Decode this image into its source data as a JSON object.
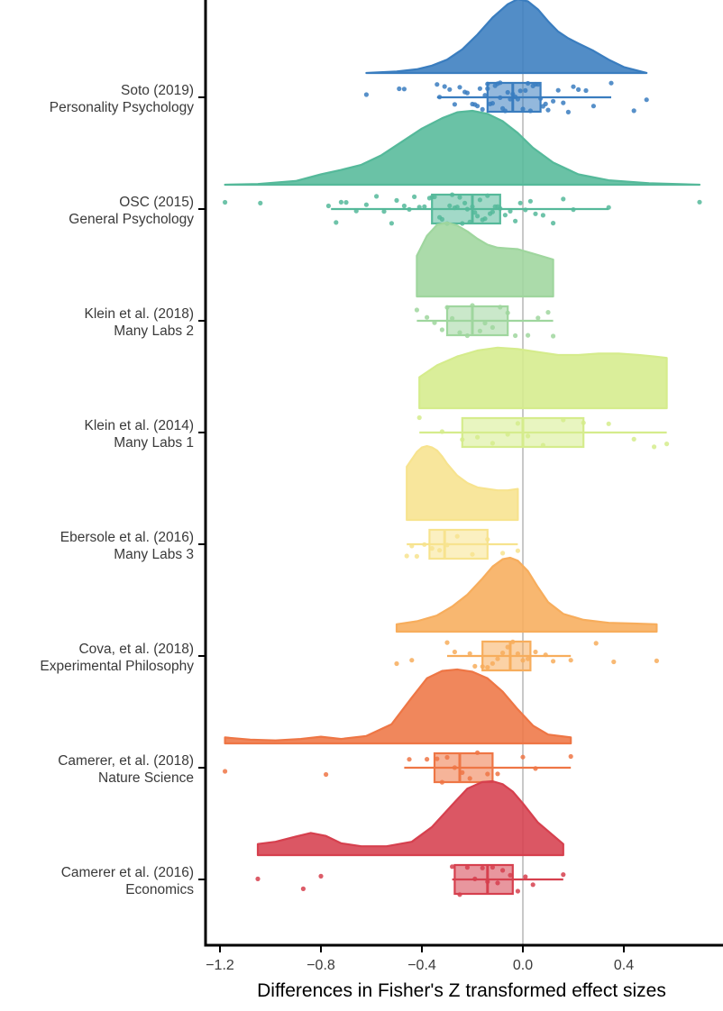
{
  "chart_data": {
    "type": "raincloud",
    "title": "",
    "xlabel": "Differences in Fisher's Z transformed effect sizes",
    "ylabel": "",
    "xlim": [
      -1.24,
      0.76
    ],
    "xticks": [
      -1.2,
      -0.8,
      -0.4,
      0.0,
      0.4
    ],
    "xtick_labels": [
      "−1.2",
      "−0.8",
      "−0.4",
      "0.0",
      "0.4"
    ],
    "reference_line": 0,
    "reference_line_color": "#c8c8c8",
    "grid": false,
    "legend": "none",
    "series": [
      {
        "label_line1": "Soto (2019)",
        "label_line2": "Personality Psychology",
        "color": "#3a7dbf",
        "density": {
          "x": [
            -0.62,
            -0.5,
            -0.42,
            -0.36,
            -0.3,
            -0.24,
            -0.18,
            -0.12,
            -0.06,
            -0.02,
            0.02,
            0.06,
            0.1,
            0.14,
            0.18,
            0.22,
            0.28,
            0.34,
            0.4,
            0.49
          ],
          "y": [
            0.0,
            0.02,
            0.05,
            0.1,
            0.18,
            0.32,
            0.52,
            0.75,
            0.93,
            1.0,
            0.97,
            0.86,
            0.7,
            0.56,
            0.47,
            0.4,
            0.3,
            0.18,
            0.08,
            0.0
          ]
        },
        "box": {
          "q1": -0.14,
          "median": -0.04,
          "q3": 0.07,
          "whisker_low": -0.34,
          "whisker_high": 0.35
        },
        "points": [
          -0.62,
          -0.49,
          -0.47,
          -0.34,
          -0.33,
          -0.31,
          -0.29,
          -0.27,
          -0.25,
          -0.23,
          -0.22,
          -0.2,
          -0.19,
          -0.18,
          -0.17,
          -0.16,
          -0.15,
          -0.14,
          -0.14,
          -0.13,
          -0.12,
          -0.11,
          -0.1,
          -0.09,
          -0.09,
          -0.08,
          -0.07,
          -0.06,
          -0.05,
          -0.04,
          -0.03,
          -0.02,
          -0.01,
          0.0,
          0.01,
          0.02,
          0.03,
          0.04,
          0.05,
          0.06,
          0.07,
          0.08,
          0.09,
          0.1,
          0.12,
          0.14,
          0.16,
          0.18,
          0.2,
          0.22,
          0.25,
          0.28,
          0.35,
          0.44,
          0.49
        ]
      },
      {
        "label_line1": "OSC (2015)",
        "label_line2": "General Psychology",
        "color": "#55b99a",
        "density": {
          "x": [
            -1.18,
            -1.05,
            -0.9,
            -0.8,
            -0.72,
            -0.64,
            -0.56,
            -0.48,
            -0.4,
            -0.32,
            -0.26,
            -0.2,
            -0.14,
            -0.08,
            -0.02,
            0.04,
            0.12,
            0.22,
            0.34,
            0.5,
            0.7
          ],
          "y": [
            0.0,
            0.01,
            0.05,
            0.14,
            0.2,
            0.27,
            0.4,
            0.58,
            0.76,
            0.9,
            0.98,
            1.0,
            0.96,
            0.86,
            0.7,
            0.5,
            0.3,
            0.14,
            0.06,
            0.02,
            0.0
          ]
        },
        "box": {
          "q1": -0.36,
          "median": -0.2,
          "q3": -0.09,
          "whisker_low": -0.76,
          "whisker_high": 0.34
        },
        "points": [
          -1.18,
          -1.04,
          -0.77,
          -0.74,
          -0.72,
          -0.7,
          -0.66,
          -0.62,
          -0.58,
          -0.55,
          -0.52,
          -0.5,
          -0.47,
          -0.45,
          -0.43,
          -0.41,
          -0.39,
          -0.37,
          -0.36,
          -0.35,
          -0.33,
          -0.32,
          -0.3,
          -0.29,
          -0.28,
          -0.27,
          -0.26,
          -0.25,
          -0.24,
          -0.23,
          -0.22,
          -0.21,
          -0.2,
          -0.19,
          -0.18,
          -0.17,
          -0.16,
          -0.15,
          -0.14,
          -0.13,
          -0.12,
          -0.11,
          -0.1,
          -0.09,
          -0.07,
          -0.05,
          -0.03,
          -0.01,
          0.01,
          0.03,
          0.05,
          0.08,
          0.12,
          0.16,
          0.2,
          0.34,
          0.7
        ]
      },
      {
        "label_line1": "Klein et al. (2018)",
        "label_line2": "Many Labs 2",
        "color": "#9fd69e",
        "density": {
          "x": [
            -0.42,
            -0.38,
            -0.34,
            -0.3,
            -0.26,
            -0.22,
            -0.18,
            -0.14,
            -0.1,
            -0.06,
            -0.02,
            0.02,
            0.06,
            0.12
          ],
          "y": [
            0.55,
            0.82,
            0.97,
            1.0,
            0.96,
            0.88,
            0.78,
            0.7,
            0.66,
            0.65,
            0.64,
            0.6,
            0.56,
            0.5
          ]
        },
        "box": {
          "q1": -0.3,
          "median": -0.2,
          "q3": -0.06,
          "whisker_low": -0.42,
          "whisker_high": 0.12
        },
        "points": [
          -0.42,
          -0.38,
          -0.35,
          -0.32,
          -0.3,
          -0.28,
          -0.25,
          -0.22,
          -0.2,
          -0.17,
          -0.15,
          -0.12,
          -0.09,
          -0.06,
          -0.03,
          0.02,
          0.06,
          0.1,
          0.12
        ]
      },
      {
        "label_line1": "Klein et al. (2014)",
        "label_line2": "Many Labs 1",
        "color": "#d5ec8c",
        "density": {
          "x": [
            -0.41,
            -0.34,
            -0.26,
            -0.18,
            -0.1,
            -0.02,
            0.06,
            0.14,
            0.22,
            0.3,
            0.38,
            0.46,
            0.52,
            0.57
          ],
          "y": [
            0.42,
            0.58,
            0.7,
            0.78,
            0.82,
            0.8,
            0.76,
            0.72,
            0.72,
            0.74,
            0.74,
            0.72,
            0.7,
            0.68
          ]
        },
        "box": {
          "q1": -0.24,
          "median": 0.0,
          "q3": 0.24,
          "whisker_low": -0.41,
          "whisker_high": 0.57
        },
        "points": [
          -0.41,
          -0.32,
          -0.24,
          -0.18,
          -0.12,
          -0.06,
          -0.02,
          0.02,
          0.08,
          0.16,
          0.24,
          0.34,
          0.44,
          0.52,
          0.57
        ]
      },
      {
        "label_line1": "Ebersole et al. (2016)",
        "label_line2": "Many Labs 3",
        "color": "#f7e38e",
        "density": {
          "x": [
            -0.46,
            -0.44,
            -0.42,
            -0.4,
            -0.38,
            -0.36,
            -0.34,
            -0.32,
            -0.3,
            -0.26,
            -0.22,
            -0.18,
            -0.14,
            -0.1,
            -0.06,
            -0.02
          ],
          "y": [
            0.72,
            0.82,
            0.92,
            0.98,
            1.0,
            0.98,
            0.94,
            0.86,
            0.76,
            0.6,
            0.5,
            0.44,
            0.42,
            0.4,
            0.4,
            0.42
          ]
        },
        "box": {
          "q1": -0.37,
          "median": -0.31,
          "q3": -0.14,
          "whisker_low": -0.46,
          "whisker_high": -0.02
        },
        "points": [
          -0.46,
          -0.44,
          -0.42,
          -0.39,
          -0.36,
          -0.33,
          -0.3,
          -0.26,
          -0.2,
          -0.14,
          -0.08,
          -0.02
        ]
      },
      {
        "label_line1": "Cova, et al. (2018)",
        "label_line2": "Experimental Philosophy",
        "color": "#f7ad5c",
        "density": {
          "x": [
            -0.5,
            -0.42,
            -0.34,
            -0.28,
            -0.22,
            -0.16,
            -0.12,
            -0.08,
            -0.05,
            -0.02,
            0.02,
            0.06,
            0.1,
            0.16,
            0.24,
            0.34,
            0.44,
            0.53
          ],
          "y": [
            0.1,
            0.14,
            0.22,
            0.34,
            0.5,
            0.72,
            0.88,
            0.98,
            1.0,
            0.96,
            0.82,
            0.6,
            0.4,
            0.24,
            0.16,
            0.12,
            0.11,
            0.1
          ]
        },
        "box": {
          "q1": -0.16,
          "median": -0.05,
          "q3": 0.03,
          "whisker_low": -0.3,
          "whisker_high": 0.19
        },
        "points": [
          -0.5,
          -0.44,
          -0.3,
          -0.27,
          -0.21,
          -0.19,
          -0.16,
          -0.14,
          -0.12,
          -0.1,
          -0.08,
          -0.06,
          -0.04,
          -0.02,
          0.0,
          0.02,
          0.05,
          0.09,
          0.12,
          0.19,
          0.29,
          0.36,
          0.53
        ]
      },
      {
        "label_line1": "Camerer, et al. (2018)",
        "label_line2": "Nature Science",
        "color": "#ee7645",
        "density": {
          "x": [
            -1.18,
            -1.08,
            -0.98,
            -0.88,
            -0.8,
            -0.72,
            -0.62,
            -0.52,
            -0.44,
            -0.38,
            -0.32,
            -0.26,
            -0.2,
            -0.14,
            -0.08,
            -0.02,
            0.04,
            0.1,
            0.19
          ],
          "y": [
            0.08,
            0.05,
            0.04,
            0.06,
            0.09,
            0.06,
            0.1,
            0.26,
            0.62,
            0.88,
            0.98,
            1.0,
            0.97,
            0.88,
            0.7,
            0.46,
            0.24,
            0.12,
            0.08
          ]
        },
        "box": {
          "q1": -0.35,
          "median": -0.25,
          "q3": -0.12,
          "whisker_low": -0.47,
          "whisker_high": 0.19
        },
        "points": [
          -1.18,
          -0.78,
          -0.45,
          -0.38,
          -0.34,
          -0.32,
          -0.3,
          -0.27,
          -0.24,
          -0.21,
          -0.18,
          -0.14,
          -0.1,
          0.0,
          0.05,
          0.19
        ]
      },
      {
        "label_line1": "Camerer et al. (2016)",
        "label_line2": "Economics",
        "color": "#d6404e",
        "density": {
          "x": [
            -1.05,
            -0.98,
            -0.9,
            -0.84,
            -0.78,
            -0.72,
            -0.64,
            -0.54,
            -0.44,
            -0.36,
            -0.28,
            -0.22,
            -0.16,
            -0.12,
            -0.08,
            -0.04,
            0.0,
            0.06,
            0.16
          ],
          "y": [
            0.15,
            0.18,
            0.25,
            0.3,
            0.26,
            0.16,
            0.12,
            0.12,
            0.18,
            0.38,
            0.68,
            0.9,
            0.99,
            1.0,
            0.96,
            0.86,
            0.7,
            0.44,
            0.15
          ]
        },
        "box": {
          "q1": -0.27,
          "median": -0.14,
          "q3": -0.04,
          "whisker_low": -0.28,
          "whisker_high": 0.16
        },
        "points": [
          -1.05,
          -0.87,
          -0.8,
          -0.28,
          -0.25,
          -0.22,
          -0.19,
          -0.16,
          -0.14,
          -0.12,
          -0.1,
          -0.08,
          -0.05,
          -0.02,
          0.01,
          0.04,
          0.16
        ]
      }
    ]
  }
}
